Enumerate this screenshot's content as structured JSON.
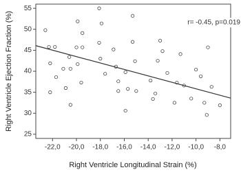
{
  "chart_data": {
    "type": "scatter",
    "x_label": "Right Ventricle Longitudinal Strain (%)",
    "y_label": "Right Ventricle Ejection Fraction (%)",
    "annotation": "r= -0.45, p=0.019",
    "x": [
      -22.6,
      -22.3,
      -22.2,
      -22.2,
      -21.8,
      -21.7,
      -21.1,
      -20.9,
      -20.6,
      -20.5,
      -20.5,
      -20.0,
      -19.9,
      -19.5,
      -19.9,
      -19.6,
      -19.5,
      -18.1,
      -17.9,
      -18.1,
      -18.0,
      -17.6,
      -16.9,
      -16.7,
      -16.5,
      -16.5,
      -15.9,
      -15.9,
      -15.7,
      -15.3,
      -15.3,
      -15.1,
      -15.0,
      -13.8,
      -13.6,
      -13.4,
      -13.2,
      -13.0,
      -12.8,
      -12.4,
      -11.8,
      -11.6,
      -11.3,
      -11.0,
      -10.4,
      -10.0,
      -9.6,
      -9.3,
      -9.1,
      -9.0,
      -8.7,
      -8.0
    ],
    "values": [
      49.8,
      45.8,
      41.9,
      35.0,
      45.8,
      38.6,
      40.6,
      36.0,
      43.4,
      40.6,
      32.0,
      45.7,
      51.9,
      49.1,
      41.7,
      37.3,
      45.7,
      55.0,
      51.4,
      46.8,
      43.0,
      39.4,
      45.2,
      41.1,
      37.6,
      35.3,
      39.8,
      30.6,
      35.8,
      47.0,
      53.2,
      42.4,
      35.3,
      37.8,
      33.4,
      34.7,
      42.5,
      47.3,
      44.8,
      39.6,
      32.5,
      37.3,
      44.1,
      36.6,
      33.5,
      40.4,
      38.8,
      32.5,
      29.6,
      45.7,
      36.3,
      31.9
    ],
    "color": "#444444",
    "fit_line": {
      "x": [
        -23.4,
        -7.1
      ],
      "y": [
        46.1,
        33.6
      ],
      "color": "#333333"
    },
    "xlim": [
      -23.4,
      -7.1
    ],
    "ylim": [
      24,
      56
    ],
    "xticks": [
      {
        "value": -22,
        "label": "-22,0"
      },
      {
        "value": -20,
        "label": "-20,0"
      },
      {
        "value": -18,
        "label": "-18,0"
      },
      {
        "value": -16,
        "label": "-16,0"
      },
      {
        "value": -14,
        "label": "-14,0"
      },
      {
        "value": -12,
        "label": "-12,0"
      },
      {
        "value": -10,
        "label": "-10,0"
      },
      {
        "value": -8,
        "label": "-8,0"
      }
    ],
    "yticks": [
      25,
      30,
      35,
      40,
      45,
      50,
      55
    ]
  }
}
